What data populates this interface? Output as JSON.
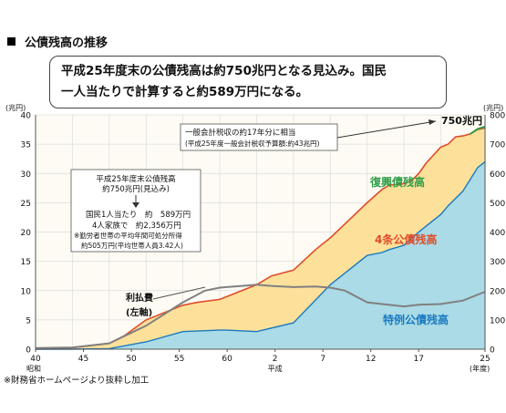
{
  "header": {
    "title": "公債残高の推移",
    "headline_lines": [
      "平成25年度末の公債残高は約750兆円となる見込み。国民",
      "一人当たりで計算すると約589万円になる。"
    ]
  },
  "footnote": "※財務省ホームページより抜粋し加工",
  "colors": {
    "tokurei": "#aadbe6",
    "yonjo": "#fde19a",
    "fukko": "#2e9e47",
    "line_red": "#e04b28",
    "line_blue": "#1a79c0",
    "interest": "#808080",
    "grid": "#dddddd",
    "plot_bg": "#fdfbf3"
  },
  "chart_data": {
    "type": "area",
    "x_labels": [
      "40",
      "45",
      "50",
      "55",
      "60",
      "2",
      "7",
      "12",
      "17",
      "25"
    ],
    "x_era_labels": [
      "昭和",
      "平成"
    ],
    "x_unit": "(年度)",
    "yleft_unit": "(兆円)",
    "yright_unit": "(兆円)",
    "yleft_ticks": [
      0,
      5,
      10,
      15,
      20,
      25,
      30,
      35,
      40
    ],
    "yright_ticks": [
      0,
      100,
      200,
      300,
      400,
      500,
      600,
      700,
      800
    ],
    "yleft_lim": [
      0,
      40
    ],
    "yright_lim": [
      0,
      800
    ],
    "legend_position": "inline labels",
    "grid": true,
    "series": [
      {
        "name": "特例公債残高",
        "kind": "stacked-area",
        "axis": "right",
        "points": [
          [
            0,
            0
          ],
          [
            5,
            0
          ],
          [
            10,
            2
          ],
          [
            15,
            25
          ],
          [
            20,
            60
          ],
          [
            25,
            65
          ],
          [
            26,
            65
          ],
          [
            30,
            60
          ],
          [
            35,
            90
          ],
          [
            40,
            220
          ],
          [
            45,
            320
          ],
          [
            47,
            330
          ],
          [
            48,
            340
          ],
          [
            50,
            355
          ],
          [
            51,
            378
          ],
          [
            52,
            400
          ],
          [
            53,
            420
          ],
          [
            55,
            460
          ],
          [
            56,
            490
          ],
          [
            57,
            515
          ],
          [
            58,
            540
          ],
          [
            60,
            620
          ],
          [
            61,
            640
          ]
        ]
      },
      {
        "name": "4条公債残高",
        "kind": "stacked-area",
        "axis": "right",
        "points": [
          [
            0,
            2
          ],
          [
            5,
            5
          ],
          [
            10,
            20
          ],
          [
            12,
            45
          ],
          [
            15,
            100
          ],
          [
            20,
            150
          ],
          [
            22,
            160
          ],
          [
            25,
            170
          ],
          [
            30,
            220
          ],
          [
            32,
            250
          ],
          [
            35,
            270
          ],
          [
            38,
            340
          ],
          [
            40,
            380
          ],
          [
            45,
            500
          ],
          [
            47,
            545
          ],
          [
            48,
            560
          ],
          [
            50,
            565
          ],
          [
            51,
            575
          ],
          [
            52,
            600
          ],
          [
            53,
            635
          ],
          [
            55,
            690
          ],
          [
            56,
            700
          ],
          [
            57,
            725
          ],
          [
            58,
            728
          ],
          [
            59,
            735
          ],
          [
            60,
            750
          ],
          [
            61,
            755
          ]
        ]
      },
      {
        "name": "復興債残高",
        "kind": "stacked-area",
        "axis": "right",
        "points": [
          [
            59,
            735
          ],
          [
            60,
            752
          ],
          [
            61,
            760
          ]
        ]
      },
      {
        "name": "利払費 (左軸)",
        "kind": "line",
        "axis": "left",
        "points": [
          [
            0,
            0.2
          ],
          [
            5,
            0.3
          ],
          [
            10,
            1
          ],
          [
            15,
            4
          ],
          [
            20,
            8
          ],
          [
            23,
            10
          ],
          [
            25,
            10.5
          ],
          [
            28,
            10.8
          ],
          [
            30,
            11
          ],
          [
            32,
            10.8
          ],
          [
            35,
            10.6
          ],
          [
            38,
            10.7
          ],
          [
            40,
            10.5
          ],
          [
            42,
            10
          ],
          [
            45,
            8
          ],
          [
            47,
            7.7
          ],
          [
            50,
            7.3
          ],
          [
            52,
            7.6
          ],
          [
            55,
            7.7
          ],
          [
            58,
            8.3
          ],
          [
            61,
            9.8
          ]
        ]
      }
    ],
    "annotations": [
      {
        "lines": [
          "一般会計税収の約17年分に相当",
          "(平成25年度一般会計税収予算額:約43兆円)"
        ]
      },
      {
        "lines": [
          "平成25年度末公債残高",
          "約750兆円(見込み)",
          "国民1人当たり　約　589万円",
          "4人家族で　約2,356万円",
          "※勤労者世帯の平均年間可処分所得",
          "約505万円(平均世帯人員3.42人)"
        ]
      }
    ],
    "labels": {
      "total": "750兆円",
      "fukko": "復興債残高",
      "yonjo": "4条公債残高",
      "tokurei": "特例公債残高",
      "interest_lines": [
        "利払費",
        "(左軸)"
      ]
    }
  }
}
